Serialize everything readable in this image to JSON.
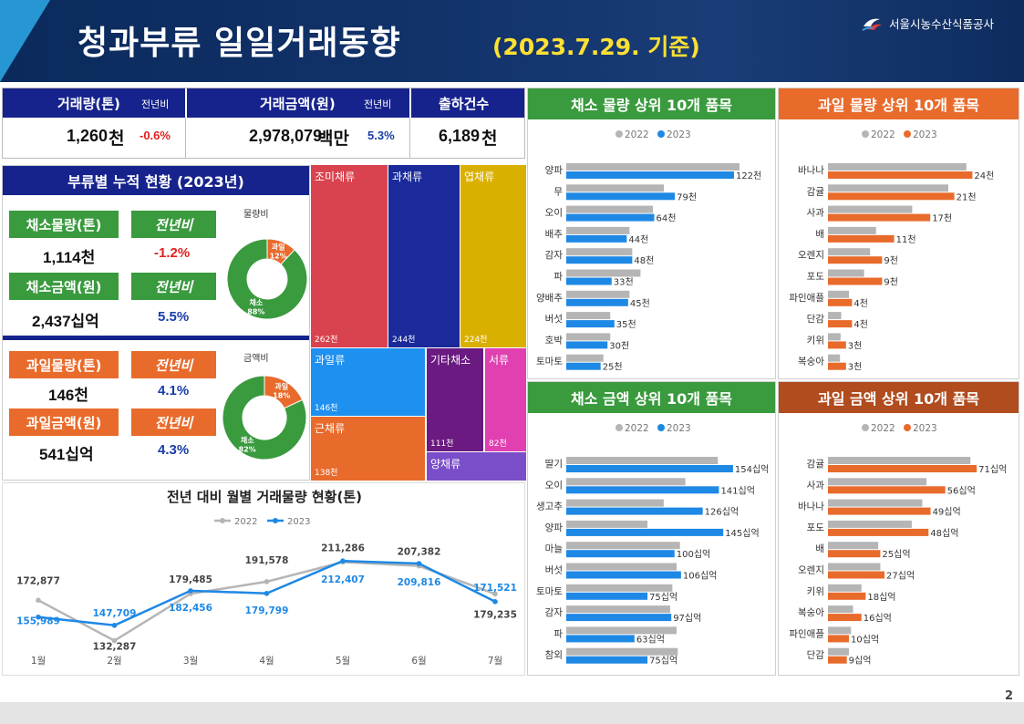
{
  "header": {
    "title": "청과부류 일일거래동향",
    "date": "(2023.7.29. 기준)",
    "org": "서울시농수산식품공사"
  },
  "page_number": "2",
  "summary": {
    "volume_label": "거래량(톤)",
    "volume_yoy_label": "전년비",
    "volume_value": "1,260",
    "volume_unit": "천",
    "volume_yoy": "-0.6%",
    "amount_label": "거래금액(원)",
    "amount_yoy_label": "전년비",
    "amount_value": "2,978,079",
    "amount_unit": "백만",
    "amount_yoy": "5.3%",
    "count_label": "출하건수",
    "count_value": "6,189",
    "count_unit": "천"
  },
  "cumulative": {
    "title": "부류별 누적 현황 (2023년)",
    "veg_volume_label": "채소물량(톤)",
    "veg_volume_value": "1,114천",
    "veg_volume_yoy_label": "전년비",
    "veg_volume_yoy": "-1.2%",
    "veg_amount_label": "채소금액(원)",
    "veg_amount_value": "2,437십억",
    "veg_amount_yoy_label": "전년비",
    "veg_amount_yoy": "5.5%",
    "fruit_volume_label": "과일물량(톤)",
    "fruit_volume_value": "146천",
    "fruit_volume_yoy_label": "전년비",
    "fruit_volume_yoy": "4.1%",
    "fruit_amount_label": "과일금액(원)",
    "fruit_amount_value": "541십억",
    "fruit_amount_yoy_label": "전년비",
    "fruit_amount_yoy": "4.3%",
    "donut_volume": {
      "title": "물량비",
      "fruit_label": "과일",
      "fruit_pct": 12,
      "veg_label": "채소",
      "veg_pct": 88,
      "fruit_color": "#e86b2c",
      "veg_color": "#3a9a3e"
    },
    "donut_amount": {
      "title": "금액비",
      "fruit_label": "과일",
      "fruit_pct": 18,
      "veg_label": "채소",
      "veg_pct": 82,
      "fruit_color": "#e86b2c",
      "veg_color": "#3a9a3e"
    }
  },
  "treemap": [
    {
      "label": "조미채류",
      "value": "262천",
      "color": "#d9434f"
    },
    {
      "label": "과채류",
      "value": "244천",
      "color": "#1a2a9a"
    },
    {
      "label": "엽채류",
      "value": "224천",
      "color": "#dab000"
    },
    {
      "label": "과일류",
      "value": "146천",
      "color": "#1e90f0"
    },
    {
      "label": "근채류",
      "value": "138천",
      "color": "#e86b2c"
    },
    {
      "label": "기타채소",
      "value": "111천",
      "color": "#6a1a80"
    },
    {
      "label": "서류",
      "value": "82천",
      "color": "#e040b0"
    },
    {
      "label": "양채류",
      "value": "",
      "color": "#7a4ec8"
    }
  ],
  "chart_data": [
    {
      "type": "line",
      "title": "전년 대비 월별 거래물량 현황(톤)",
      "categories": [
        "1월",
        "2월",
        "3월",
        "4월",
        "5월",
        "6월",
        "7월"
      ],
      "series": [
        {
          "name": "2022",
          "color": "#b5b5b5",
          "values": [
            172877,
            132287,
            179485,
            191578,
            211286,
            207382,
            179235
          ],
          "labels": [
            "172,877",
            "132,287",
            "179,485",
            "191,578",
            "211,286",
            "207,382",
            "179,235"
          ]
        },
        {
          "name": "2023",
          "color": "#1e88e5",
          "values": [
            155989,
            147709,
            182456,
            179799,
            212407,
            209816,
            171521
          ],
          "labels": [
            "155,989",
            "147,709",
            "182,456",
            "179,799",
            "212,407",
            "209,816",
            "171,521"
          ]
        }
      ]
    },
    {
      "type": "bar",
      "title": "채소 물량 상위 10개 품목",
      "categories": [
        "양파",
        "무",
        "오이",
        "배추",
        "감자",
        "파",
        "양배추",
        "버섯",
        "호박",
        "토마토"
      ],
      "series": [
        {
          "name": "2022",
          "color": "#b5b5b5",
          "values": [
            126,
            71,
            63,
            46,
            48,
            54,
            46,
            32,
            32,
            27
          ]
        },
        {
          "name": "2023",
          "color": "#1e88e5",
          "values": [
            122,
            79,
            64,
            44,
            48,
            33,
            45,
            35,
            30,
            25
          ],
          "labels": [
            "122천",
            "79천",
            "64천",
            "44천",
            "48천",
            "33천",
            "45천",
            "35천",
            "30천",
            "25천"
          ]
        }
      ]
    },
    {
      "type": "bar",
      "title": "과일 물량 상위 10개 품목",
      "categories": [
        "바나나",
        "감귤",
        "사과",
        "배",
        "오렌지",
        "포도",
        "파인애플",
        "단감",
        "키위",
        "복숭아"
      ],
      "series": [
        {
          "name": "2022",
          "color": "#b5b5b5",
          "values": [
            23,
            20,
            14,
            8,
            7,
            6,
            3.5,
            2.2,
            2.1,
            2.0
          ]
        },
        {
          "name": "2023",
          "color": "#e86b2c",
          "values": [
            24,
            21,
            17,
            11,
            9,
            9,
            4,
            4,
            3,
            3
          ],
          "labels": [
            "24천",
            "21천",
            "17천",
            "11천",
            "9천",
            "9천",
            "4천",
            "4천",
            "3천",
            "3천"
          ]
        }
      ]
    },
    {
      "type": "bar",
      "title": "채소 금액 상위 10개 품목",
      "categories": [
        "딸기",
        "오이",
        "생고추",
        "양파",
        "마늘",
        "버섯",
        "토마토",
        "감자",
        "파",
        "참외"
      ],
      "series": [
        {
          "name": "2022",
          "color": "#b5b5b5",
          "values": [
            140,
            110,
            90,
            75,
            105,
            102,
            98,
            96,
            102,
            103
          ]
        },
        {
          "name": "2023",
          "color": "#1e88e5",
          "values": [
            154,
            141,
            126,
            145,
            100,
            106,
            75,
            97,
            63,
            75
          ],
          "labels": [
            "154십억",
            "141십억",
            "126십억",
            "145십억",
            "100십억",
            "106십억",
            "75십억",
            "97십억",
            "63십억",
            "75십억"
          ]
        }
      ]
    },
    {
      "type": "bar",
      "title": "과일 금액 상위 10개 품목",
      "categories": [
        "감귤",
        "사과",
        "바나나",
        "포도",
        "배",
        "오렌지",
        "키위",
        "복숭아",
        "파인애플",
        "단감"
      ],
      "series": [
        {
          "name": "2022",
          "color": "#b5b5b5",
          "values": [
            68,
            47,
            45,
            40,
            24,
            25,
            16,
            12,
            11,
            10
          ]
        },
        {
          "name": "2023",
          "color": "#e86b2c",
          "values": [
            71,
            56,
            49,
            48,
            25,
            27,
            18,
            16,
            10,
            9
          ],
          "labels": [
            "71십억",
            "56십억",
            "49십억",
            "48십억",
            "25십억",
            "27십억",
            "18십억",
            "16십억",
            "10십억",
            "9십억"
          ]
        }
      ]
    }
  ]
}
